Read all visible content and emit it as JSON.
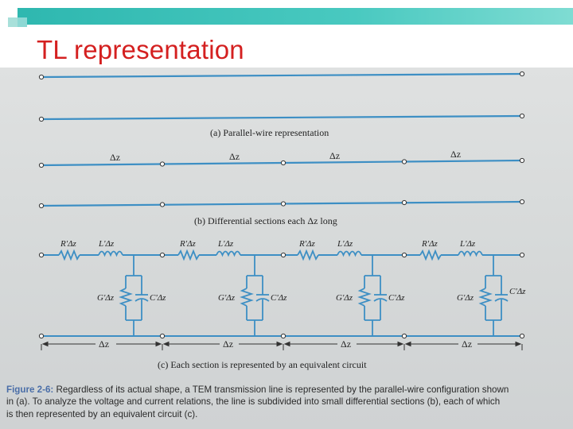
{
  "slide": {
    "title": "TL representation",
    "accent_color": "#2fb8b0",
    "title_color": "#d42020"
  },
  "figure": {
    "labels": {
      "a": "(a)  Parallel-wire representation",
      "b": "(b)  Differential sections each Δz long",
      "c": "(c)  Each section is represented by an equivalent circuit"
    },
    "dz": "Δz",
    "components": {
      "resistor": "R'Δz",
      "inductor": "L'Δz",
      "conductance": "G'Δz",
      "capacitance": "C'Δz"
    },
    "wire_color": "#3d8fc4"
  },
  "caption": {
    "label": "Figure 2-6:",
    "line1": "Regardless of its actual shape, a TEM transmission line is represented by the parallel-wire configuration shown",
    "line2": "in (a).  To analyze the voltage and current relations, the line is subdivided into small differential sections (b), each of which",
    "line3": "is then represented by an equivalent circuit (c)."
  }
}
